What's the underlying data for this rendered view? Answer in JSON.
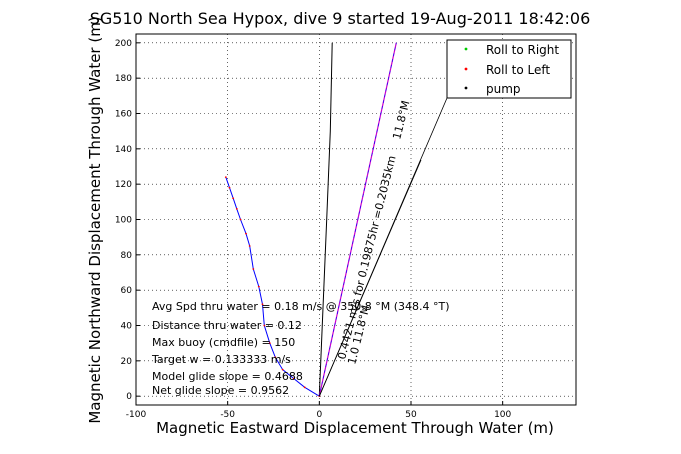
{
  "chart_data": {
    "type": "line",
    "title": "SG510 North Sea Hypox, dive 9 started 19-Aug-2011 18:42:06",
    "xlabel": "Magnetic Eastward Displacement Through Water (m)",
    "ylabel": "Magnetic Northward Displacement Through Water (m)",
    "xlim": [
      -100,
      140
    ],
    "ylim": [
      -5,
      205
    ],
    "xticks": [
      -100,
      -50,
      0,
      50,
      100
    ],
    "yticks": [
      0,
      20,
      40,
      60,
      80,
      100,
      120,
      140,
      160,
      180,
      200
    ],
    "grid": true,
    "legend_position": "top-right",
    "legend": [
      "Roll to Right",
      "Roll to Left",
      "pump"
    ],
    "colors": {
      "right": "#00cc00",
      "left": "#ff0000",
      "pump": "#000000",
      "track": "#0000ff",
      "magenta": "#cc00cc"
    },
    "series": [
      {
        "name": "Roll to Left",
        "x": [
          0,
          -8,
          -14,
          -20,
          -24,
          -27,
          -30,
          -31,
          -33,
          -36,
          -38,
          -40,
          -43,
          -45,
          -47,
          -49,
          -51
        ],
        "y": [
          0,
          5,
          10,
          15,
          22,
          30,
          40,
          52,
          62,
          72,
          85,
          92,
          100,
          106,
          112,
          118,
          124
        ]
      },
      {
        "name": "pump",
        "x": [
          0,
          2,
          4,
          6,
          7
        ],
        "y": [
          0,
          50,
          100,
          150,
          200
        ]
      },
      {
        "name": "track (magenta)",
        "x": [
          0,
          42
        ],
        "y": [
          0,
          200
        ]
      }
    ],
    "annotations": [
      "Avg Spd thru water =  0.18 m/s @ 350.8   °M (348.4 °T)",
      "Distance thru water =  0.12",
      "Max buoy (cmdfile) = 150",
      "Target w = 0.133333 m/s",
      "Model glide slope = 0.4688",
      "Net glide slope = 0.9562"
    ],
    "rotated_labels": [
      "0.4421 m/s for 0.19875hr =0.2035km",
      "11.8°M",
      "1.0  11.8°M"
    ]
  }
}
